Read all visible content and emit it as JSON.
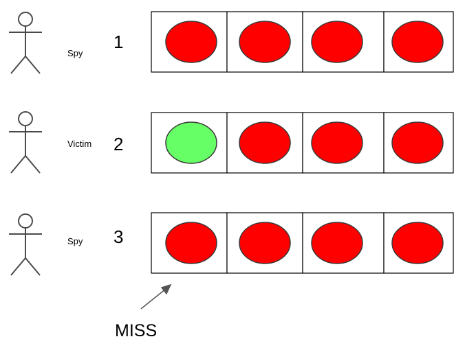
{
  "rows": [
    {
      "role": "Spy",
      "number": "1",
      "slots": [
        "miss",
        "miss",
        "miss",
        "miss"
      ]
    },
    {
      "role": "Victim",
      "number": "2",
      "slots": [
        "hit",
        "miss",
        "miss",
        "miss"
      ]
    },
    {
      "role": "Spy",
      "number": "3",
      "slots": [
        "miss",
        "miss",
        "miss",
        "miss"
      ]
    }
  ],
  "arrow_label": "MISS",
  "colors": {
    "miss": "#ff0000",
    "hit": "#66ff66",
    "figure": "#4a4a4a",
    "box_border": "#000000"
  }
}
